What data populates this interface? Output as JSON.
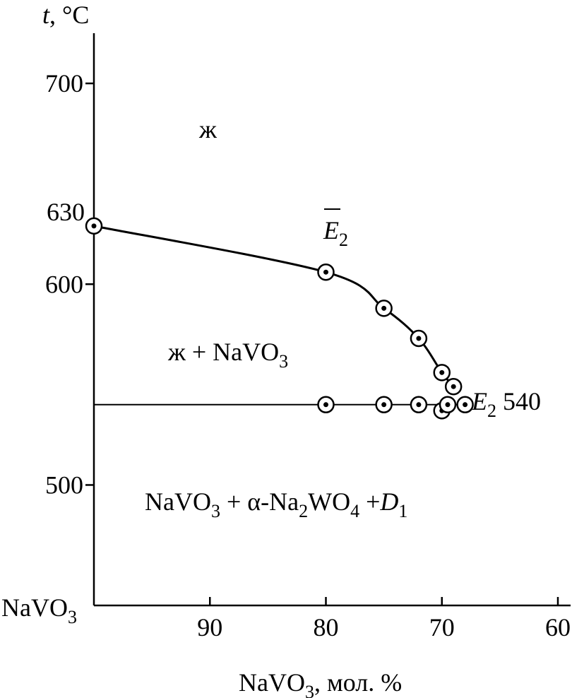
{
  "chart_data": {
    "type": "line",
    "y_label": [
      {
        "t": "t",
        "italic": true
      },
      {
        "t": ", °C"
      }
    ],
    "x_label": [
      {
        "t": "NaVO"
      },
      {
        "t": "3",
        "sub": true
      },
      {
        "t": ", мол. %"
      }
    ],
    "origin_label": [
      {
        "t": "NaVO"
      },
      {
        "t": "3",
        "sub": true
      }
    ],
    "xlim": [
      100,
      60
    ],
    "xticks": [
      90,
      80,
      70,
      60
    ],
    "ylim": [
      440,
      725
    ],
    "yticks": [
      500,
      600,
      700
    ],
    "y_marked": 630,
    "line_color": "#000000",
    "series": [
      {
        "x": [
          100,
          80,
          75,
          72,
          70,
          69
        ],
        "values": [
          629,
          606,
          588,
          573,
          556,
          549
        ],
        "smooth": true
      },
      {
        "x": [
          100,
          68
        ],
        "values": [
          540,
          540
        ],
        "smooth": false
      }
    ],
    "points": {
      "x": [
        100,
        80,
        75,
        72,
        70,
        69,
        80,
        75,
        72,
        70,
        69.5,
        68
      ],
      "values": [
        629,
        606,
        588,
        573,
        556,
        549,
        540,
        540,
        540,
        537,
        540,
        540
      ]
    },
    "annotations": [
      [
        {
          "t": "ж"
        }
      ],
      [
        {
          "t": "ж + NaVO"
        },
        {
          "t": "3",
          "sub": true
        }
      ],
      [
        {
          "t": "NaVO"
        },
        {
          "t": "3",
          "sub": true
        },
        {
          "t": " + α-Na"
        },
        {
          "t": "2",
          "sub": true
        },
        {
          "t": "WO"
        },
        {
          "t": "4",
          "sub": true
        },
        {
          "t": " +"
        },
        {
          "t": "D",
          "italic": true
        },
        {
          "t": "1",
          "sub": true
        }
      ],
      [
        {
          "t": "E",
          "italic": true
        },
        {
          "t": "2",
          "sub": true
        }
      ],
      [
        {
          "t": "E",
          "italic": true
        },
        {
          "t": "2",
          "sub": true
        },
        {
          "t": " 540"
        }
      ]
    ]
  }
}
